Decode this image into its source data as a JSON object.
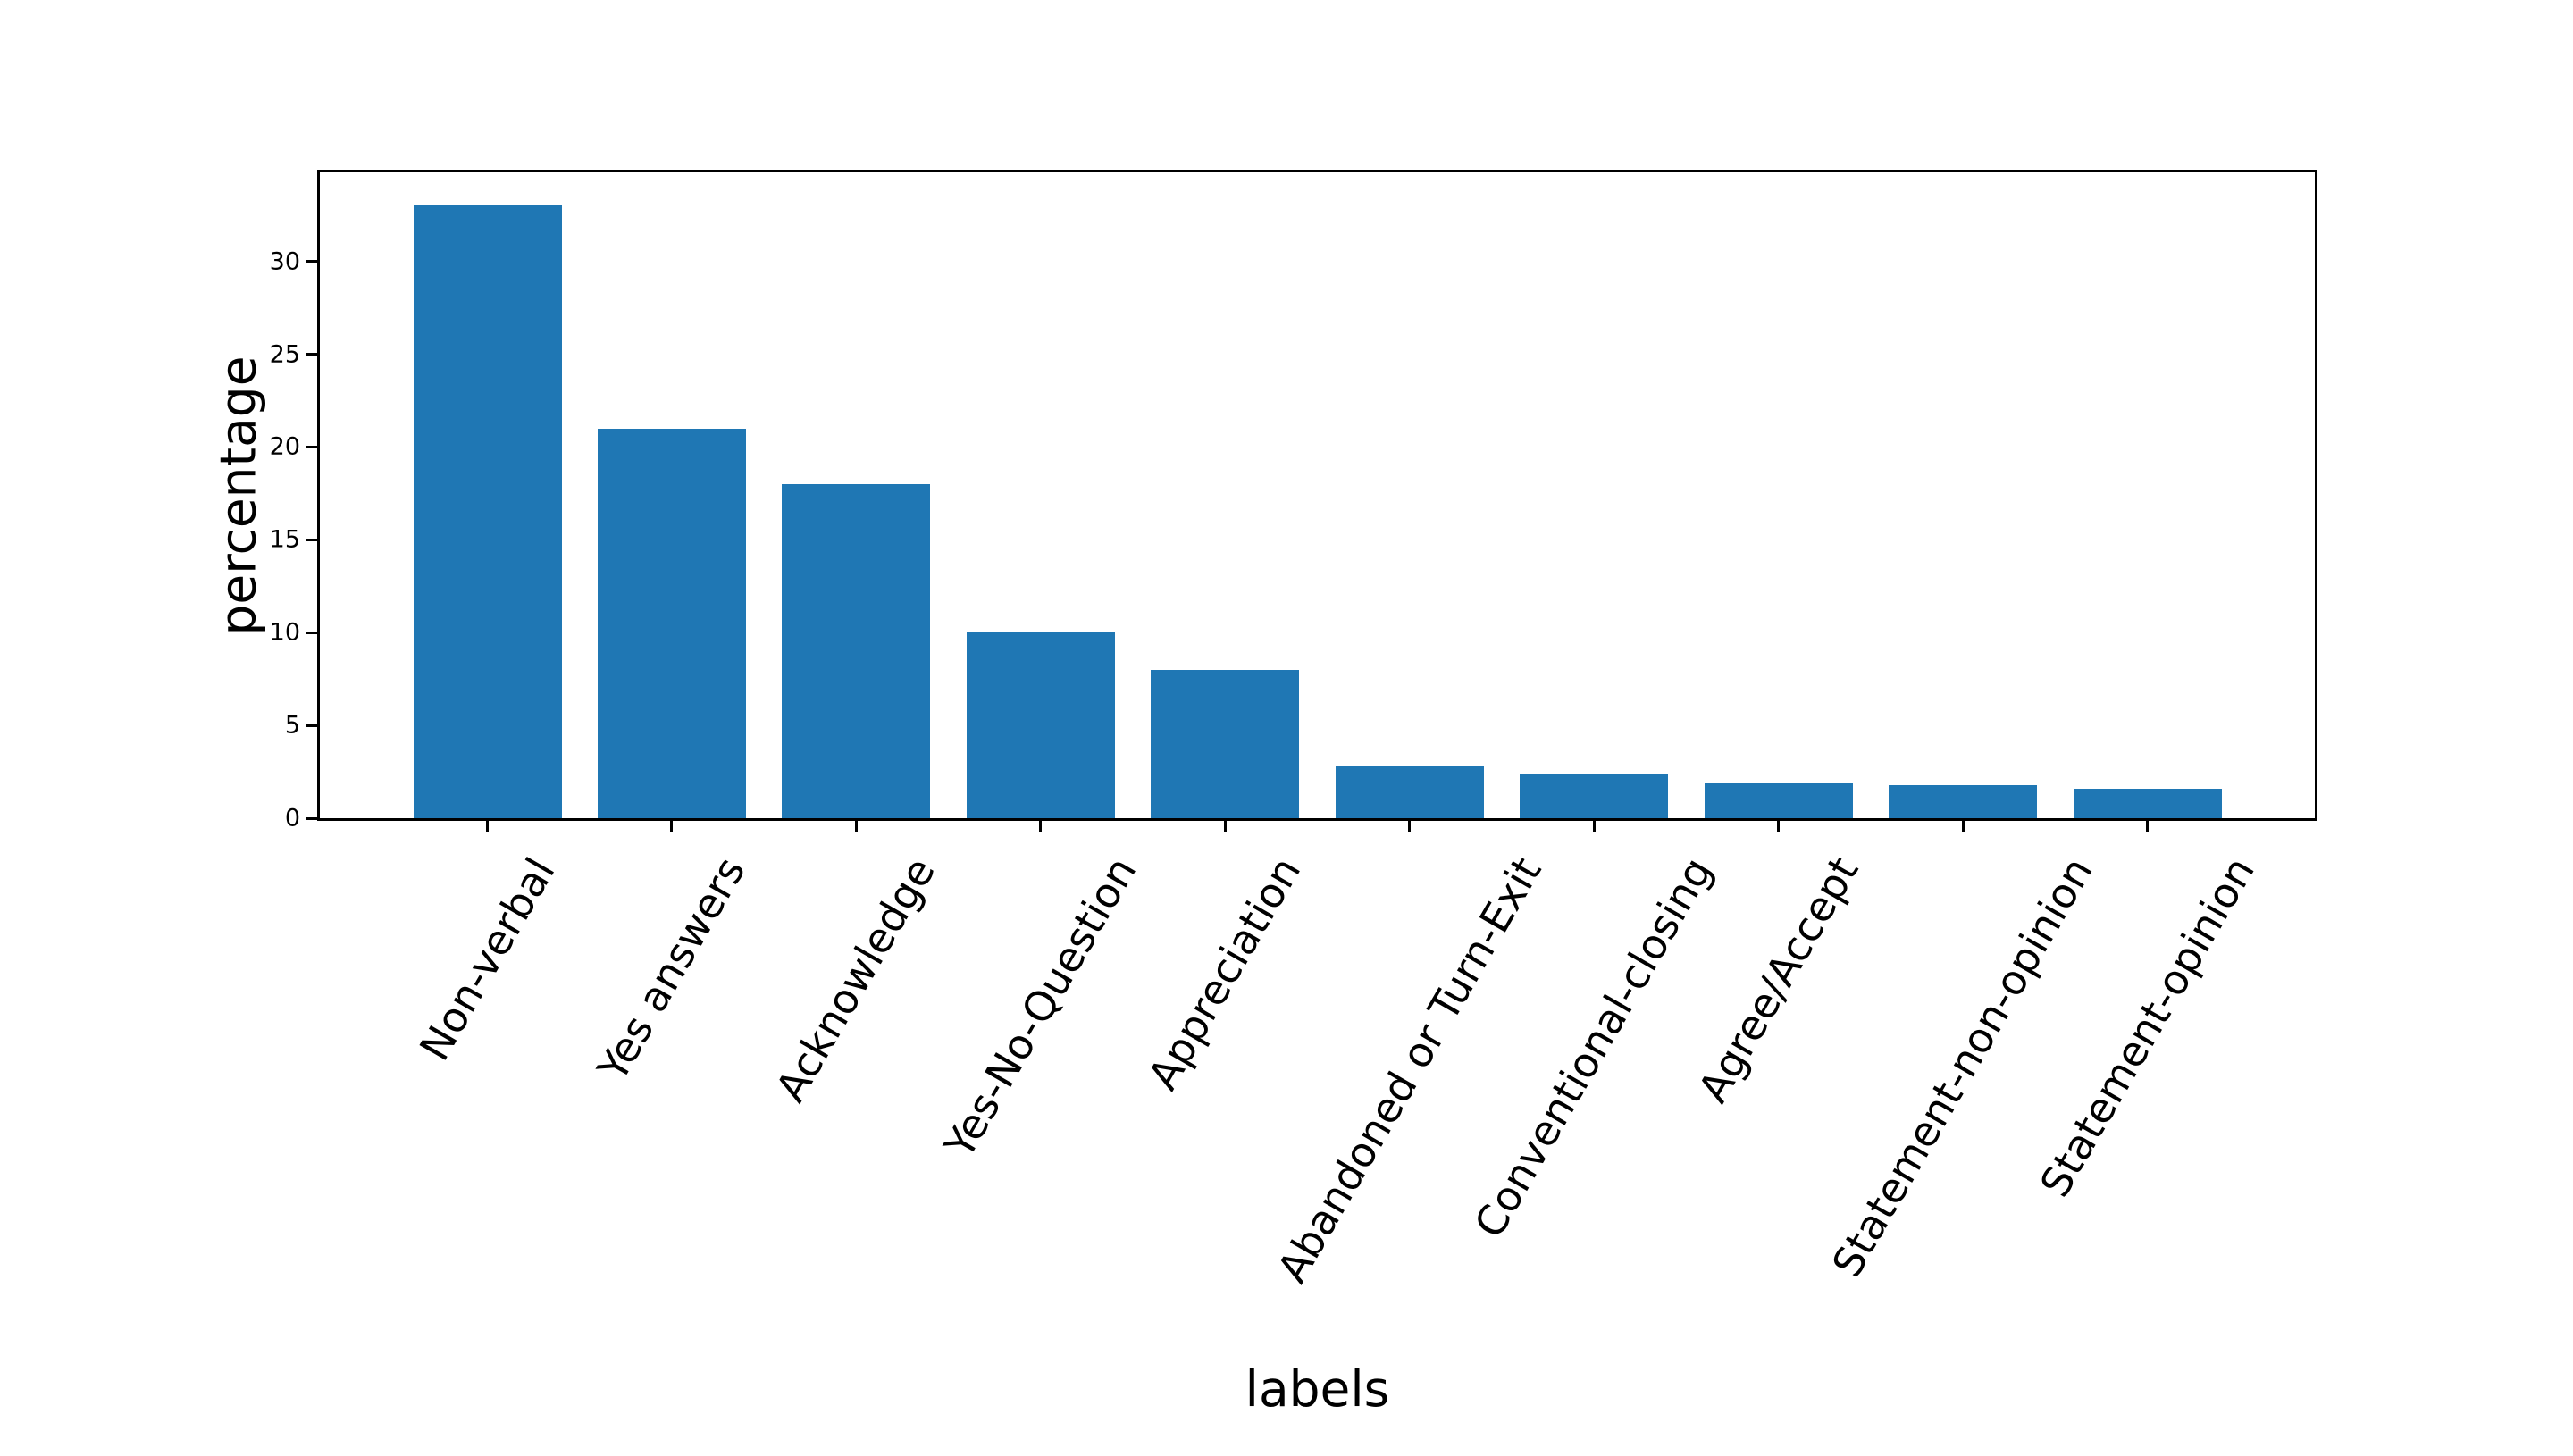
{
  "figure": {
    "background": "#ffffff"
  },
  "chart_data": {
    "type": "bar",
    "title": "",
    "xlabel": "labels",
    "ylabel": "percentage",
    "categories": [
      "Non-verbal",
      "Yes answers",
      "Acknowledge",
      "Yes-No-Question",
      "Appreciation",
      "Abandoned or Turn-Exit",
      "Conventional-closing",
      "Agree/Accept",
      "Statement-non-opinion",
      "Statement-opinion"
    ],
    "values": [
      33,
      21,
      18,
      10,
      8,
      2.8,
      2.4,
      1.9,
      1.8,
      1.6
    ],
    "yticks": [
      0,
      5,
      10,
      15,
      20,
      25,
      30
    ],
    "ylim": [
      0,
      34.8
    ],
    "xtick_rotation_deg": 60,
    "grid": false,
    "legend": null,
    "bar_color": "#1f77b4",
    "axis_color": "#000000",
    "text_color": "#000000"
  }
}
